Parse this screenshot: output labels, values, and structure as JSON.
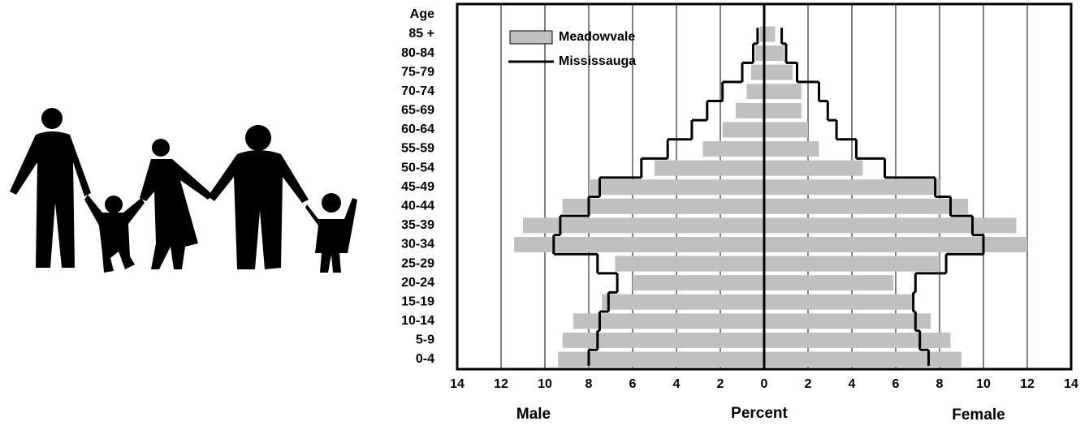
{
  "chart_data": {
    "type": "pyramid",
    "y_header": "Age",
    "categories": [
      "85 +",
      "80-84",
      "75-79",
      "70-74",
      "65-69",
      "60-64",
      "55-59",
      "50-54",
      "45-49",
      "40-44",
      "35-39",
      "30-34",
      "25-29",
      "20-24",
      "15-19",
      "10-14",
      "5-9",
      "0-4"
    ],
    "series": [
      {
        "name": "Meadowvale",
        "style": "bar",
        "color": "#c0c0c0",
        "male": [
          -0.2,
          -0.4,
          -0.6,
          -0.8,
          -1.3,
          -1.9,
          -2.8,
          -5.0,
          -8.0,
          -9.2,
          -11.0,
          -11.4,
          -6.8,
          -6.0,
          -7.4,
          -8.7,
          -9.2,
          -9.4
        ],
        "female": [
          0.5,
          0.9,
          1.3,
          1.7,
          1.7,
          2.0,
          2.5,
          4.5,
          8.0,
          9.3,
          11.5,
          12.0,
          8.0,
          5.9,
          6.8,
          7.6,
          8.5,
          9.0
        ]
      },
      {
        "name": "Mississauga",
        "style": "step",
        "color": "#000000",
        "male": [
          -0.3,
          -0.5,
          -1.0,
          -1.9,
          -2.6,
          -3.3,
          -4.4,
          -5.6,
          -7.5,
          -8.0,
          -9.3,
          -9.6,
          -7.6,
          -6.7,
          -7.1,
          -7.5,
          -7.6,
          -8.0
        ],
        "female": [
          0.8,
          1.0,
          1.5,
          2.5,
          2.9,
          3.3,
          4.2,
          5.5,
          7.8,
          8.5,
          9.5,
          10.0,
          8.3,
          6.9,
          6.8,
          6.9,
          7.1,
          7.5
        ]
      }
    ],
    "xlim": [
      -14,
      14
    ],
    "xticks": [
      {
        "value": -14,
        "label": "14"
      },
      {
        "value": -12,
        "label": "12"
      },
      {
        "value": -10,
        "label": "10"
      },
      {
        "value": -8,
        "label": "8"
      },
      {
        "value": -6,
        "label": "6"
      },
      {
        "value": -4,
        "label": "4"
      },
      {
        "value": -2,
        "label": "2"
      },
      0,
      2,
      4,
      6,
      8,
      10,
      12,
      14
    ],
    "xlabel": "Percent",
    "left_label": "Male",
    "right_label": "Female",
    "grid": true
  }
}
